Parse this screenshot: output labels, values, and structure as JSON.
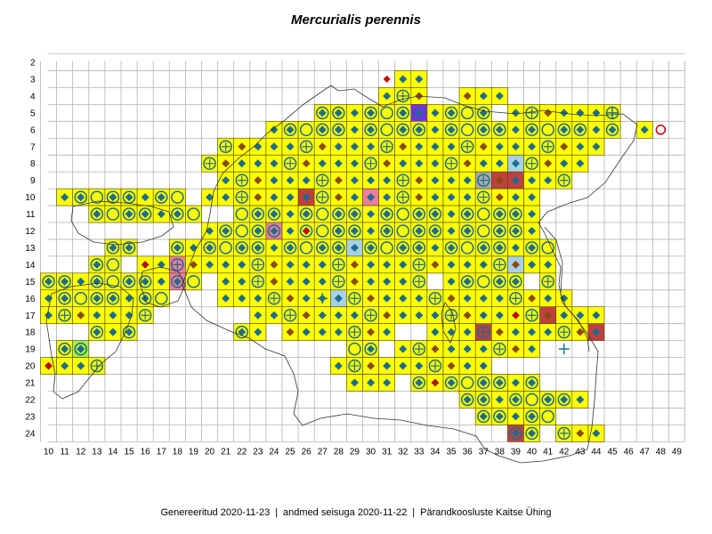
{
  "title": "Mercurialis perennis",
  "footer": {
    "generated": "Genereeritud 2020-11-23",
    "data_state": "andmed seisuga 2020-11-22",
    "organization": "Pärandkoosluste Kaitse Ühing",
    "separator": "|"
  },
  "grid": {
    "row_labels": [
      "2",
      "3",
      "4",
      "5",
      "6",
      "7",
      "8",
      "9",
      "10",
      "11",
      "12",
      "13",
      "14",
      "15",
      "16",
      "17",
      "18",
      "19",
      "20",
      "21",
      "22",
      "23",
      "24"
    ],
    "col_labels": [
      "10",
      "11",
      "12",
      "13",
      "14",
      "15",
      "16",
      "17",
      "18",
      "19",
      "20",
      "21",
      "22",
      "23",
      "24",
      "25",
      "26",
      "27",
      "28",
      "29",
      "30",
      "31",
      "32",
      "33",
      "34",
      "35",
      "36",
      "37",
      "38",
      "39",
      "40",
      "41",
      "42",
      "43",
      "44",
      "45",
      "46",
      "47",
      "48",
      "49"
    ]
  },
  "colors": {
    "cell_fill": "#ffff00",
    "cell_border": "#4a4a00",
    "grid_line": "#b4b4b4",
    "outline": "#333333",
    "marker_main": "#1a6d8c",
    "marker_brown": "#8b4a12",
    "marker_red": "#cc0000",
    "special_purple": "#8b22ff",
    "special_pink": "#f07ca0",
    "special_darkred": "#c04040",
    "special_lightblue": "#a8d0e6",
    "special_green": "#aaee44",
    "special_gray": "#aaaaaa"
  },
  "legend_symbols": [
    "filled-diamond",
    "ring",
    "ring-with-diamond",
    "ring-with-cross",
    "plus",
    "brown-diamond",
    "red-diamond",
    "red-ring"
  ]
}
